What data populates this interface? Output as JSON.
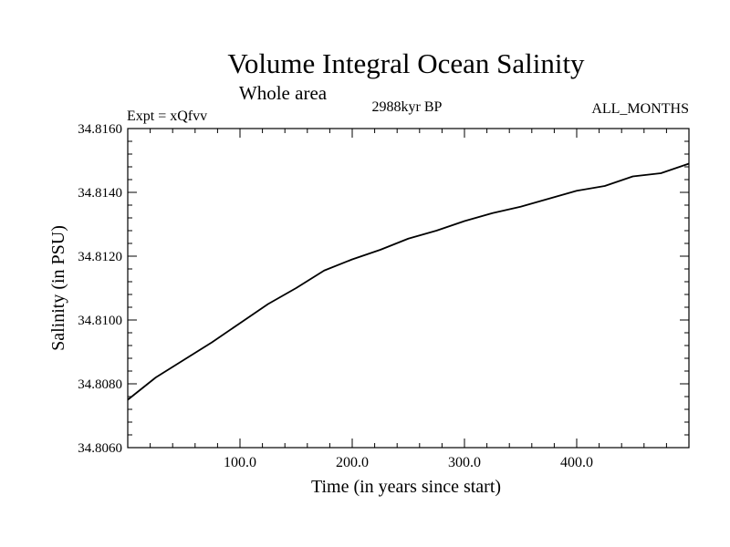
{
  "chart_data": {
    "type": "line",
    "title": "Volume Integral Ocean Salinity",
    "subtitle": "Whole area",
    "annotations": {
      "left": "Expt = xQfvv",
      "center": "2988kyr BP",
      "right": "ALL_MONTHS"
    },
    "xlabel": "Time (in years since start)",
    "ylabel": "Salinity (in PSU)",
    "xlim": [
      0,
      500
    ],
    "ylim": [
      34.806,
      34.816
    ],
    "x_ticks": [
      100,
      200,
      300,
      400
    ],
    "x_tick_labels": [
      "100.0",
      "200.0",
      "300.0",
      "400.0"
    ],
    "y_ticks": [
      34.806,
      34.808,
      34.81,
      34.812,
      34.814,
      34.816
    ],
    "y_tick_labels": [
      "34.8060",
      "34.8080",
      "34.8100",
      "34.8120",
      "34.8140",
      "34.8160"
    ],
    "grid": false,
    "series": [
      {
        "name": "Salinity",
        "color": "#000000",
        "x": [
          0,
          25,
          50,
          75,
          100,
          125,
          150,
          175,
          200,
          225,
          250,
          275,
          300,
          325,
          350,
          375,
          400,
          425,
          450,
          475,
          500
        ],
        "y": [
          34.8075,
          34.8082,
          34.80875,
          34.8093,
          34.8099,
          34.8105,
          34.811,
          34.81155,
          34.8119,
          34.8122,
          34.81255,
          34.8128,
          34.8131,
          34.81335,
          34.81355,
          34.8138,
          34.81405,
          34.8142,
          34.8145,
          34.8146,
          34.8149
        ]
      }
    ]
  }
}
